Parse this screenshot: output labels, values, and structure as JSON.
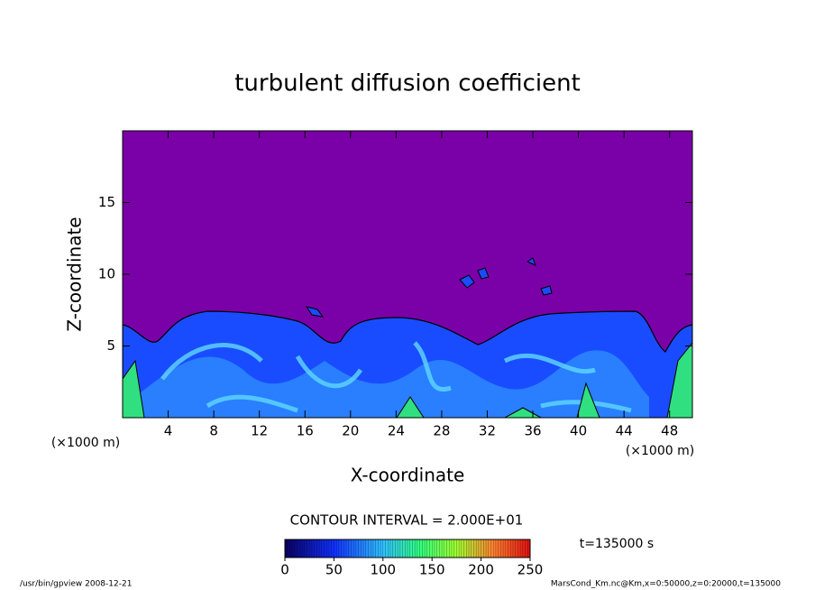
{
  "chart_data": {
    "type": "contour",
    "title": "turbulent diffusion coefficient",
    "xlabel": "X-coordinate",
    "ylabel": "Z-coordinate",
    "x_unit": "(×1000 m)",
    "y_unit": "(×1000 m)",
    "xlim": [
      0,
      50
    ],
    "xticks": [
      4,
      8,
      12,
      16,
      20,
      24,
      28,
      32,
      36,
      40,
      44,
      48
    ],
    "ylim": [
      0,
      20
    ],
    "yticks": [
      5,
      10,
      15
    ],
    "contour_interval": "CONTOUR INTERVAL = 2.000E+01",
    "colorbar": {
      "lim": [
        0,
        250
      ],
      "ticks": [
        0,
        50,
        100,
        150,
        200,
        250
      ]
    },
    "time_label": "t=135000 s",
    "footer_left": "/usr/bin/gpview   2008-12-21",
    "footer_right": "MarsCond_Km.nc@Km,x=0:50000,z=0:20000,t=135000"
  }
}
